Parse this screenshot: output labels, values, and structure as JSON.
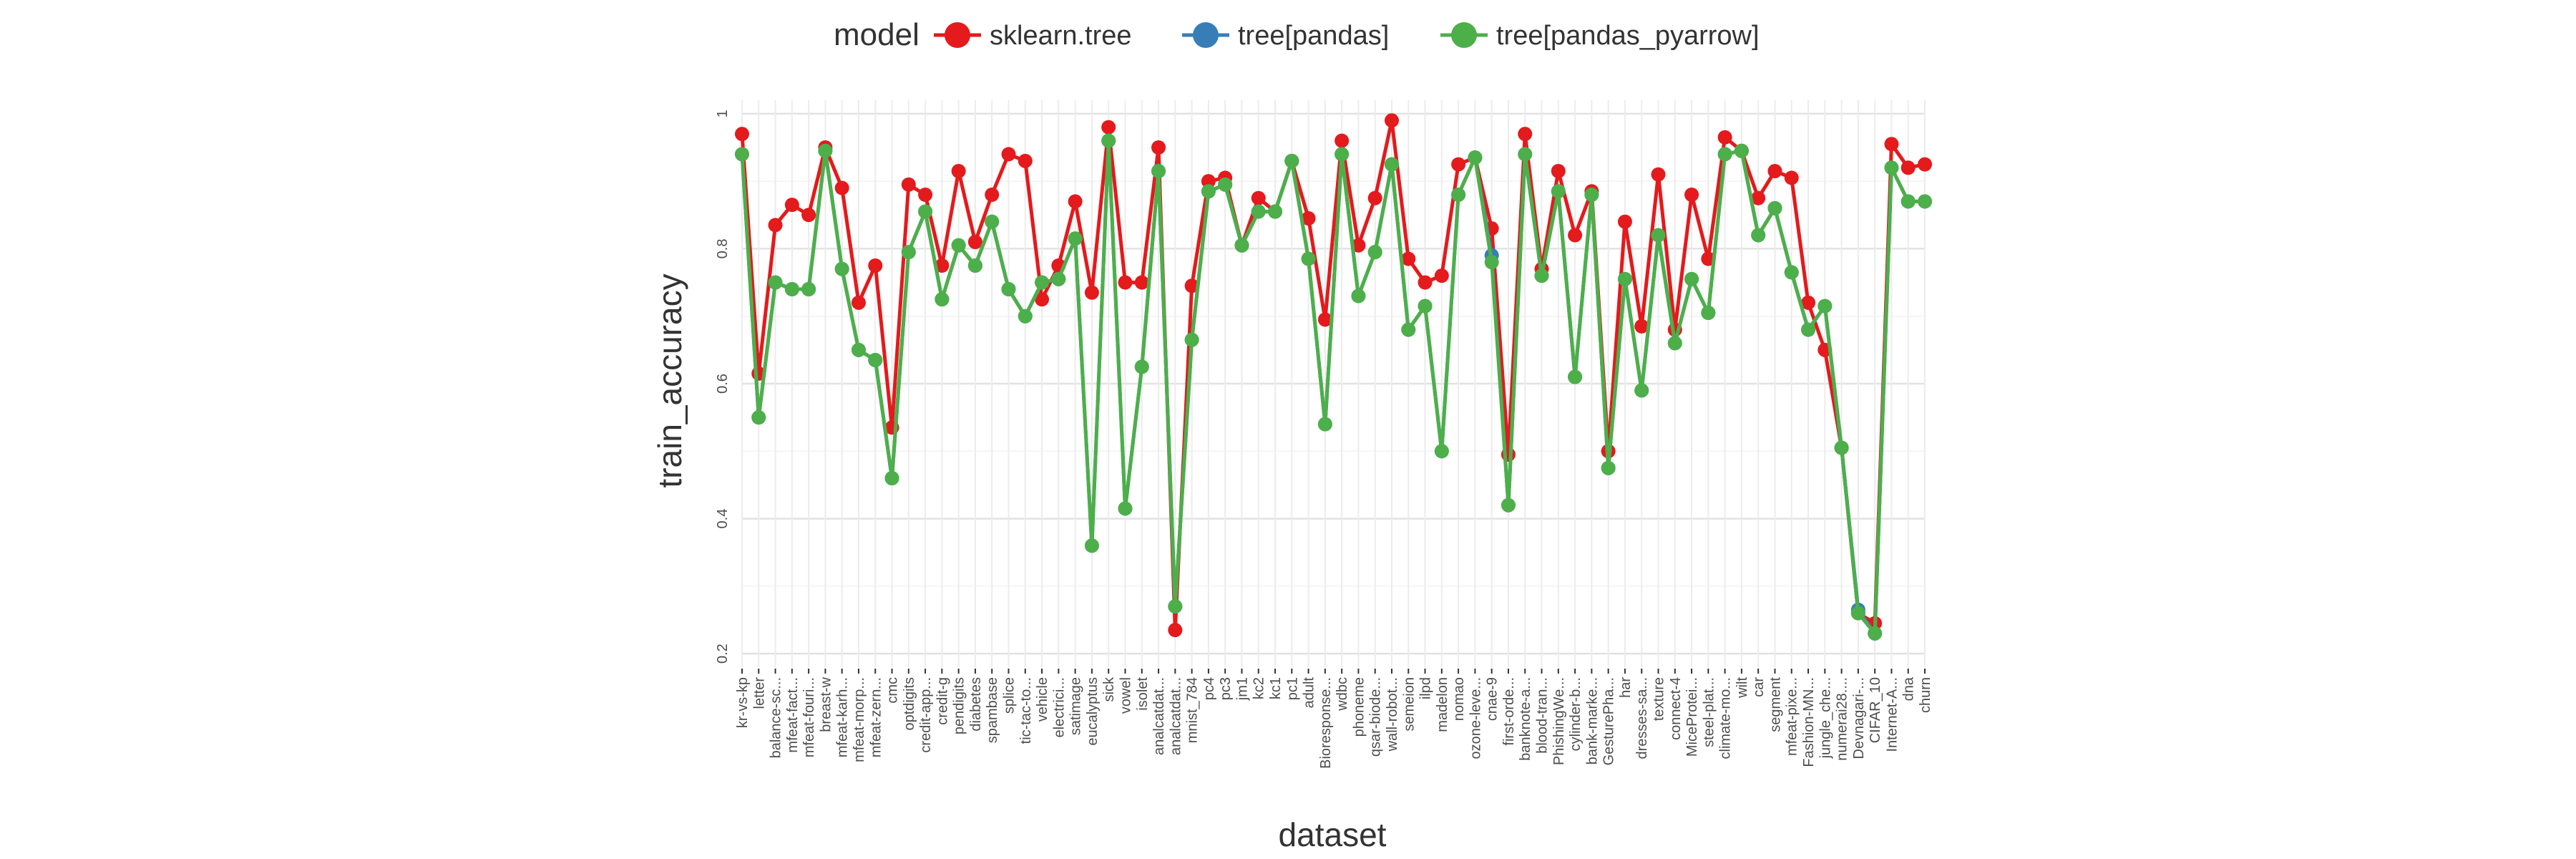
{
  "chart_data": {
    "type": "line",
    "xlabel": "dataset",
    "ylabel": "train_accuracy",
    "ylim": [
      0.18,
      1.02
    ],
    "yticks": [
      0.2,
      0.4,
      0.6,
      0.8,
      1
    ],
    "ytick_labels": [
      "0.2",
      "0.4",
      "0.6",
      "0.8",
      "1"
    ],
    "grid": true,
    "legend_title": "model",
    "legend_position": "top",
    "categories": [
      "kr-vs-kp",
      "letter",
      "balance-sc...",
      "mfeat-fact...",
      "mfeat-fouri...",
      "breast-w",
      "mfeat-karh...",
      "mfeat-morp...",
      "mfeat-zern...",
      "cmc",
      "optdigits",
      "credit-app...",
      "credit-g",
      "pendigits",
      "diabetes",
      "spambase",
      "splice",
      "tic-tac-to...",
      "vehicle",
      "electrici...",
      "satimage",
      "eucalyptus",
      "sick",
      "vowel",
      "isolet",
      "analcatdat...",
      "analcatdat...",
      "mnist_784",
      "pc4",
      "pc3",
      "jm1",
      "kc2",
      "kc1",
      "pc1",
      "adult",
      "Bioresponse...",
      "wdbc",
      "phoneme",
      "qsar-biode...",
      "wall-robot...",
      "semeion",
      "ilpd",
      "madelon",
      "nomao",
      "ozone-leve...",
      "cnae-9",
      "first-orde...",
      "banknote-a...",
      "blood-tran...",
      "PhishingWe...",
      "cylinder-b...",
      "bank-marke...",
      "GesturePha...",
      "har",
      "dresses-sa...",
      "texture",
      "connect-4",
      "MiceProtei...",
      "steel-plat...",
      "climate-mo...",
      "wilt",
      "car",
      "segment",
      "mfeat-pixe...",
      "Fashion-MN...",
      "jungle_che...",
      "numerai28....",
      "Devnagari-...",
      "CIFAR_10",
      "Internet-A...",
      "dna",
      "churn"
    ],
    "series": [
      {
        "name": "sklearn.tree",
        "color": "#e41a1c",
        "values": [
          0.97,
          0.615,
          0.835,
          0.865,
          0.85,
          0.95,
          0.89,
          0.72,
          0.775,
          0.535,
          0.895,
          0.88,
          0.775,
          0.915,
          0.81,
          0.88,
          0.94,
          0.93,
          0.725,
          0.775,
          0.87,
          0.735,
          0.98,
          0.75,
          0.75,
          0.95,
          0.235,
          0.745,
          0.9,
          0.905,
          0.805,
          0.875,
          0.855,
          0.93,
          0.845,
          0.695,
          0.96,
          0.805,
          0.875,
          0.99,
          0.785,
          0.75,
          0.76,
          0.925,
          0.935,
          0.83,
          0.495,
          0.97,
          0.77,
          0.915,
          0.82,
          0.885,
          0.5,
          0.84,
          0.685,
          0.91,
          0.68,
          0.88,
          0.785,
          0.965,
          0.945,
          0.875,
          0.915,
          0.905,
          0.72,
          0.65,
          0.505,
          0.26,
          0.245,
          0.955,
          0.92,
          0.925
        ]
      },
      {
        "name": "tree[pandas]",
        "color": "#377eb8",
        "values": [
          0.94,
          0.55,
          0.75,
          0.74,
          0.74,
          0.945,
          0.77,
          0.65,
          0.635,
          0.46,
          0.795,
          0.855,
          0.725,
          0.805,
          0.775,
          0.84,
          0.74,
          0.7,
          0.75,
          0.755,
          0.815,
          0.36,
          0.96,
          0.415,
          0.625,
          0.915,
          0.27,
          0.665,
          0.885,
          0.895,
          0.805,
          0.855,
          0.855,
          0.93,
          0.785,
          0.54,
          0.94,
          0.73,
          0.795,
          0.925,
          0.68,
          0.715,
          0.5,
          0.88,
          0.935,
          0.79,
          0.42,
          0.94,
          0.76,
          0.885,
          0.61,
          0.88,
          0.475,
          0.755,
          0.59,
          0.82,
          0.66,
          0.755,
          0.705,
          0.94,
          0.945,
          0.82,
          0.86,
          0.765,
          0.68,
          0.715,
          0.505,
          0.265,
          0.23,
          0.92,
          0.87,
          0.87
        ]
      },
      {
        "name": "tree[pandas_pyarrow]",
        "color": "#4daf4a",
        "values": [
          0.94,
          0.55,
          0.75,
          0.74,
          0.74,
          0.945,
          0.77,
          0.65,
          0.635,
          0.46,
          0.795,
          0.855,
          0.725,
          0.805,
          0.775,
          0.84,
          0.74,
          0.7,
          0.75,
          0.755,
          0.815,
          0.36,
          0.96,
          0.415,
          0.625,
          0.915,
          0.27,
          0.665,
          0.885,
          0.895,
          0.805,
          0.855,
          0.855,
          0.93,
          0.785,
          0.54,
          0.94,
          0.73,
          0.795,
          0.925,
          0.68,
          0.715,
          0.5,
          0.88,
          0.935,
          0.78,
          0.42,
          0.94,
          0.76,
          0.885,
          0.61,
          0.88,
          0.475,
          0.755,
          0.59,
          0.82,
          0.66,
          0.755,
          0.705,
          0.94,
          0.945,
          0.82,
          0.86,
          0.765,
          0.68,
          0.715,
          0.505,
          0.26,
          0.23,
          0.92,
          0.87,
          0.87
        ]
      }
    ]
  }
}
